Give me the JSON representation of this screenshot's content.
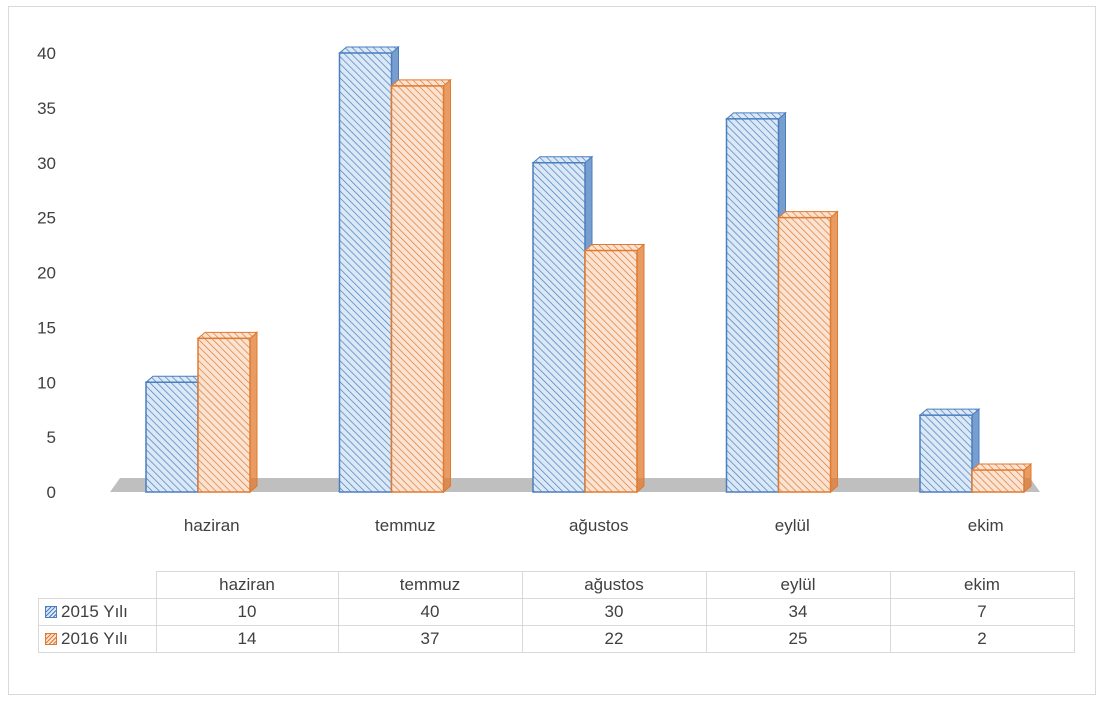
{
  "chart_data": {
    "type": "bar",
    "style": "3d-clustered-column",
    "categories": [
      "haziran",
      "temmuz",
      "ağustos",
      "eylül",
      "ekim"
    ],
    "series": [
      {
        "name": "2015 Yılı",
        "values": [
          10,
          40,
          30,
          34,
          7
        ],
        "color": "#4a7ebf",
        "fill": "#dbe8f6",
        "pattern": "diagonal-hatch"
      },
      {
        "name": "2016 Yılı",
        "values": [
          14,
          37,
          22,
          25,
          2
        ],
        "color": "#e07a2e",
        "fill": "#fbe3d3",
        "pattern": "diagonal-hatch"
      }
    ],
    "yticks": [
      "0",
      "5",
      "10",
      "15",
      "20",
      "25",
      "30",
      "35",
      "40"
    ],
    "ylim": [
      0,
      40
    ],
    "grid": false,
    "floor_color": "#bfbfbf",
    "legend": "data-table"
  }
}
